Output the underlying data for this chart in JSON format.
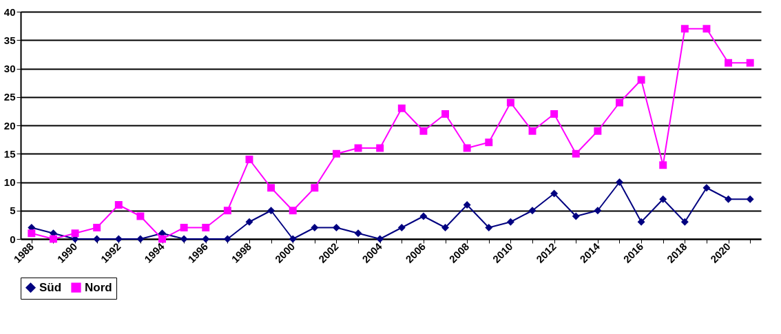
{
  "chart_data": {
    "type": "line",
    "categories": [
      "1988",
      null,
      "1990",
      null,
      "1992",
      null,
      "1994",
      null,
      "1996",
      null,
      "1998",
      null,
      "2000",
      null,
      "2002",
      null,
      "2004",
      null,
      "2006",
      null,
      "2008",
      null,
      "2010",
      null,
      "2012",
      null,
      "2014",
      null,
      "2016",
      null,
      "2018",
      null,
      "2020",
      null
    ],
    "series": [
      {
        "name": "Süd",
        "color": "#000080",
        "marker": "diamond",
        "values": [
          2,
          1,
          0,
          0,
          0,
          0,
          1,
          0,
          0,
          0,
          3,
          5,
          0,
          2,
          2,
          1,
          0,
          2,
          4,
          2,
          6,
          2,
          3,
          5,
          8,
          4,
          5,
          10,
          3,
          7,
          3,
          9,
          7,
          7
        ]
      },
      {
        "name": "Nord",
        "color": "#ff00ff",
        "marker": "square",
        "values": [
          1,
          0,
          1,
          2,
          6,
          4,
          0,
          2,
          2,
          5,
          14,
          9,
          5,
          9,
          15,
          16,
          16,
          23,
          19,
          22,
          16,
          17,
          24,
          19,
          22,
          15,
          19,
          24,
          28,
          13,
          37,
          37,
          31,
          31
        ]
      }
    ],
    "ylim": [
      0,
      40
    ],
    "yticks": [
      0,
      5,
      10,
      15,
      20,
      25,
      30,
      35,
      40
    ],
    "grid": "y",
    "legend": "bottom",
    "line_style": "solid"
  }
}
